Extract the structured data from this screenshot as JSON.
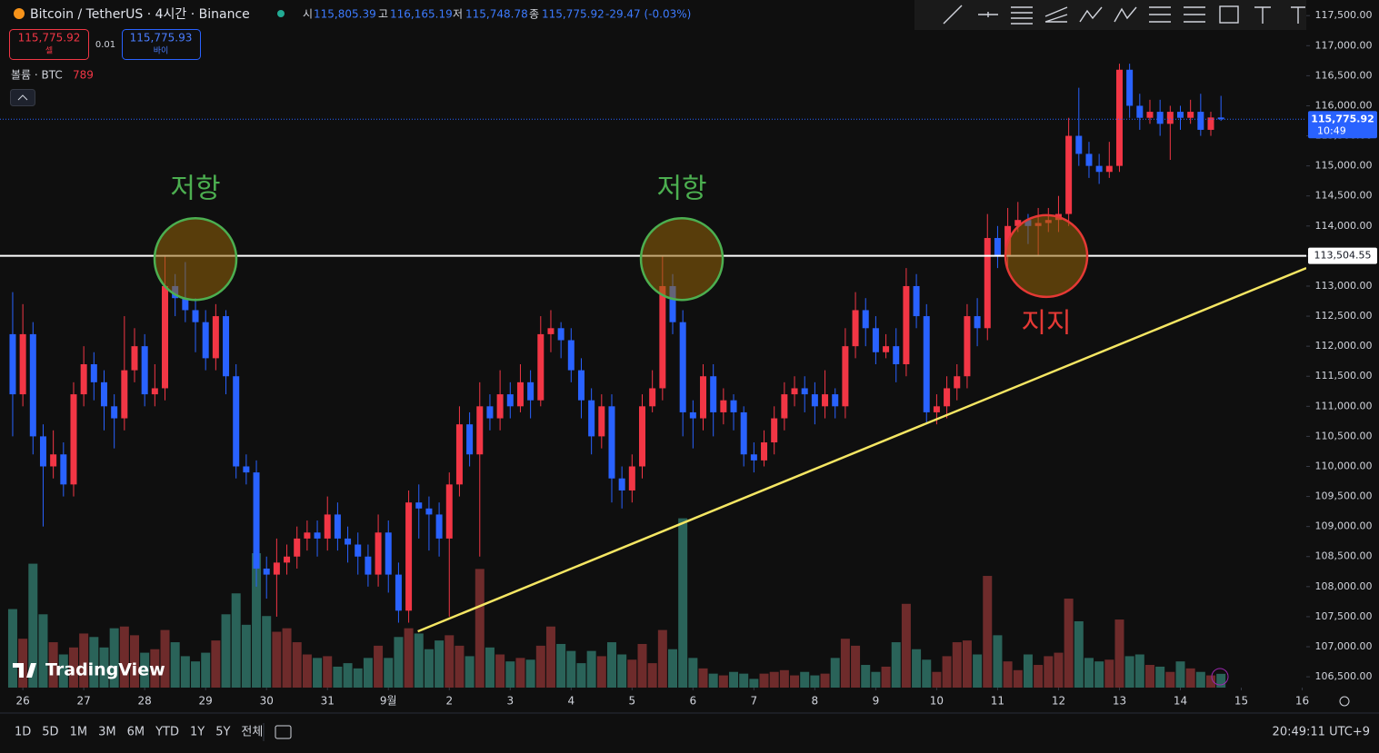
{
  "header": {
    "symbol": "Bitcoin / TetherUS · 4시간 · Binance",
    "o_label": "시",
    "o": "115,805.39",
    "h_label": "고",
    "h": "116,165.19",
    "l_label": "저",
    "l": "115,748.78",
    "c_label": "종",
    "c": "115,775.92",
    "change": "-29.47 (-0.03%)",
    "sell_price": "115,775.92",
    "sell": "셀",
    "spread": "0.01",
    "buy_price": "115,775.93",
    "buy": "바이",
    "volume_label": "볼륨 · BTC"
  },
  "chart_data": {
    "type": "candlestick",
    "open": [
      112200,
      111200,
      112200,
      110500,
      110000,
      110200,
      109700,
      111200,
      111700,
      111400,
      111000,
      110800,
      111600,
      112000,
      111200,
      111300,
      113000,
      112800,
      112600,
      112400,
      111800,
      112500,
      111500,
      110000,
      109900,
      108300,
      108200,
      108400,
      108500,
      108800,
      108900,
      108800,
      109200,
      108800,
      108700,
      108500,
      108200,
      108900,
      108200,
      107600,
      109400,
      109300,
      109200,
      108800,
      109700,
      110700,
      110200,
      111000,
      110800,
      111200,
      111000,
      111400,
      111100,
      112200,
      112300,
      112100,
      111600,
      111100,
      110500,
      111000,
      109800,
      109600,
      110000,
      111000,
      111300,
      113000,
      112400,
      110900,
      110800,
      111500,
      110900,
      111100,
      110900,
      110200,
      110100,
      110400,
      110800,
      111200,
      111300,
      111200,
      111000,
      111200,
      111000,
      112000,
      112600,
      112300,
      111900,
      112000,
      111700,
      113000,
      112500,
      110900,
      111000,
      111300,
      111500,
      112500,
      112300,
      113800,
      113500,
      114000,
      114100,
      114000,
      114050,
      114100,
      114200,
      115500,
      115200,
      115000,
      114900,
      115000,
      116600,
      116000,
      115800,
      115900,
      115700,
      115900,
      115800,
      115900,
      115600,
      115805.39
    ],
    "high": [
      112900,
      112700,
      112400,
      110700,
      110600,
      110400,
      111400,
      112000,
      111900,
      111600,
      111200,
      112500,
      112300,
      112200,
      111700,
      113500,
      113200,
      113400,
      112800,
      112600,
      112700,
      112600,
      111700,
      110200,
      110100,
      108500,
      108800,
      108700,
      109000,
      109100,
      109100,
      109500,
      109400,
      109000,
      108900,
      108700,
      109200,
      109100,
      108400,
      109600,
      109700,
      109500,
      109400,
      109900,
      111000,
      110900,
      111400,
      111200,
      111600,
      111400,
      111700,
      111600,
      112500,
      112600,
      112400,
      112300,
      111800,
      111300,
      111200,
      111200,
      110000,
      110200,
      111200,
      111600,
      113500,
      113200,
      112600,
      111100,
      111700,
      111700,
      111300,
      111200,
      111000,
      110400,
      110600,
      111000,
      111400,
      111500,
      111500,
      111400,
      111600,
      111300,
      112300,
      112900,
      112800,
      112500,
      112200,
      112300,
      113300,
      113200,
      112700,
      111200,
      111500,
      111700,
      112700,
      112800,
      114200,
      114000,
      114300,
      114400,
      114200,
      114300,
      114300,
      114500,
      115800,
      116300,
      115400,
      115200,
      115400,
      116700,
      116700,
      116200,
      116100,
      116100,
      116000,
      116000,
      116100,
      116200,
      115900,
      116165.19
    ],
    "low": [
      110500,
      111000,
      110200,
      109000,
      109800,
      109500,
      109500,
      111000,
      111100,
      110600,
      110300,
      110600,
      111400,
      111000,
      111000,
      111100,
      112500,
      112400,
      111900,
      111600,
      111600,
      111200,
      109800,
      109700,
      108000,
      107800,
      107500,
      108200,
      108300,
      108600,
      108500,
      108600,
      108600,
      108400,
      108200,
      108000,
      108000,
      107900,
      107400,
      107400,
      108800,
      108600,
      108500,
      107500,
      109500,
      110000,
      108500,
      110600,
      110600,
      110800,
      110900,
      110800,
      111000,
      111900,
      111800,
      111400,
      110800,
      110200,
      110300,
      109400,
      109300,
      109400,
      109800,
      110900,
      111100,
      112200,
      110500,
      110300,
      110600,
      110500,
      110700,
      110600,
      110000,
      109900,
      110000,
      110200,
      110600,
      111000,
      110900,
      110700,
      110800,
      110800,
      110800,
      111800,
      112000,
      111700,
      111800,
      111400,
      111500,
      112300,
      110700,
      110700,
      110800,
      111100,
      111300,
      112000,
      112100,
      113300,
      113300,
      113900,
      113700,
      113500,
      113900,
      113900,
      114000,
      115000,
      114800,
      114700,
      114800,
      114900,
      115800,
      115600,
      115700,
      115500,
      115100,
      115600,
      115700,
      115500,
      115500,
      115748.78
    ],
    "close": [
      111200,
      112200,
      110500,
      110000,
      110200,
      109700,
      111200,
      111700,
      111400,
      111000,
      110800,
      111600,
      112000,
      111200,
      111300,
      113000,
      112800,
      112600,
      112400,
      111800,
      112500,
      111500,
      110000,
      109900,
      108300,
      108200,
      108400,
      108500,
      108800,
      108900,
      108800,
      109200,
      108800,
      108700,
      108500,
      108200,
      108900,
      108200,
      107600,
      109400,
      109300,
      109200,
      108800,
      109700,
      110700,
      110200,
      111000,
      110800,
      111200,
      111000,
      111400,
      111100,
      112200,
      112300,
      112100,
      111600,
      111100,
      110500,
      111000,
      109800,
      109600,
      110000,
      111000,
      111300,
      113000,
      112400,
      110900,
      110800,
      111500,
      110900,
      111100,
      110900,
      110200,
      110100,
      110400,
      110800,
      111200,
      111300,
      111200,
      111000,
      111200,
      111000,
      112000,
      112600,
      112300,
      111900,
      112000,
      111700,
      113000,
      112500,
      110900,
      111000,
      111300,
      111500,
      112500,
      112300,
      113800,
      113500,
      114000,
      114100,
      114000,
      114050,
      114100,
      114200,
      115500,
      115200,
      115000,
      114900,
      115000,
      116600,
      116000,
      115800,
      115900,
      115700,
      115900,
      115800,
      115900,
      115600,
      115805.39,
      115775.92
    ],
    "volume": [
      4500,
      2800,
      7100,
      4200,
      2600,
      1900,
      2300,
      3100,
      2900,
      2300,
      3400,
      3500,
      3000,
      2000,
      2200,
      3300,
      2600,
      1800,
      1500,
      2000,
      2700,
      4200,
      5400,
      3600,
      7700,
      4100,
      3200,
      3400,
      2600,
      1900,
      1700,
      1800,
      1200,
      1400,
      1100,
      1700,
      2400,
      1700,
      2900,
      3400,
      3100,
      2200,
      2700,
      3000,
      2400,
      1800,
      6800,
      2300,
      1900,
      1500,
      1700,
      1600,
      2400,
      3500,
      2500,
      2100,
      1400,
      2100,
      1800,
      2600,
      1900,
      1600,
      2500,
      1400,
      3300,
      2200,
      9700,
      1700,
      1100,
      800,
      700,
      900,
      800,
      500,
      800,
      900,
      1000,
      700,
      900,
      700,
      800,
      1700,
      2800,
      2400,
      1300,
      900,
      1200,
      2600,
      4800,
      2200,
      1600,
      900,
      1800,
      2600,
      2700,
      1900,
      6400,
      3000,
      1500,
      1000,
      1900,
      1300,
      1800,
      2000,
      5100,
      3800,
      1700,
      1500,
      1600,
      3900,
      1800,
      1900,
      1300,
      1200,
      900,
      1500,
      1100,
      900,
      700,
      789
    ],
    "up_color": "#f23645",
    "down_color": "#2962ff",
    "volume_up_color": "#6e2b2b",
    "volume_down_color": "#2a6359",
    "xlim": [
      -1.25,
      127.4
    ],
    "ylim": [
      106320,
      117760
    ],
    "volume_ylim": [
      0,
      39400
    ],
    "yticks": [
      {
        "value": 106500,
        "label": "106,500.00"
      },
      {
        "value": 107000,
        "label": "107,000.00"
      },
      {
        "value": 107500,
        "label": "107,500.00"
      },
      {
        "value": 108000,
        "label": "108,000.00"
      },
      {
        "value": 108500,
        "label": "108,500.00"
      },
      {
        "value": 109000,
        "label": "109,000.00"
      },
      {
        "value": 109500,
        "label": "109,500.00"
      },
      {
        "value": 110000,
        "label": "110,000.00"
      },
      {
        "value": 110500,
        "label": "110,500.00"
      },
      {
        "value": 111000,
        "label": "111,000.00"
      },
      {
        "value": 111500,
        "label": "111,500.00"
      },
      {
        "value": 112000,
        "label": "112,000.00"
      },
      {
        "value": 112500,
        "label": "112,500.00"
      },
      {
        "value": 113000,
        "label": "113,000.00"
      },
      {
        "value": 113500,
        "label": "113,500.00"
      },
      {
        "value": 114000,
        "label": "114,000.00"
      },
      {
        "value": 114500,
        "label": "114,500.00"
      },
      {
        "value": 115000,
        "label": "115,000.00"
      },
      {
        "value": 115500,
        "label": "115,500.00"
      },
      {
        "value": 116000,
        "label": "116,000.00"
      },
      {
        "value": 116500,
        "label": "116,500.00"
      },
      {
        "value": 117000,
        "label": "117,000.00"
      },
      {
        "value": 117500,
        "label": "117,500.00"
      }
    ],
    "xticks": [
      {
        "value": 1,
        "label": "26"
      },
      {
        "value": 7,
        "label": "27"
      },
      {
        "value": 13,
        "label": "28"
      },
      {
        "value": 19,
        "label": "29"
      },
      {
        "value": 25,
        "label": "30"
      },
      {
        "value": 31,
        "label": "31"
      },
      {
        "value": 37,
        "label": "9월"
      },
      {
        "value": 43,
        "label": "2"
      },
      {
        "value": 49,
        "label": "3"
      },
      {
        "value": 55,
        "label": "4"
      },
      {
        "value": 61,
        "label": "5"
      },
      {
        "value": 67,
        "label": "6"
      },
      {
        "value": 73,
        "label": "7"
      },
      {
        "value": 79,
        "label": "8"
      },
      {
        "value": 85,
        "label": "9"
      },
      {
        "value": 91,
        "label": "10"
      },
      {
        "value": 97,
        "label": "11"
      },
      {
        "value": 103,
        "label": "12"
      },
      {
        "value": 109,
        "label": "13"
      },
      {
        "value": 115,
        "label": "14"
      },
      {
        "value": 121,
        "label": "15"
      },
      {
        "value": 127,
        "label": "16"
      }
    ],
    "hline": {
      "value": 113504.55,
      "label": "113,504.55",
      "color": "#ffffff"
    },
    "last_price": {
      "label": "115,775.92",
      "time": "10:49",
      "color": "#2962ff"
    },
    "trendline": {
      "x": [
        39.9,
        127.4
      ],
      "y": [
        107255,
        113300
      ],
      "color": "#f5e663"
    },
    "circles": [
      {
        "x": 18,
        "y": 113450,
        "label": "저항",
        "color": "#4caf50",
        "label_side": "above"
      },
      {
        "x": 65.9,
        "y": 113450,
        "label": "저항",
        "color": "#4caf50",
        "label_side": "above"
      },
      {
        "x": 101.8,
        "y": 113500,
        "label": "지지",
        "color": "#e53935",
        "label_side": "below"
      }
    ]
  },
  "footer": {
    "ranges": [
      "1D",
      "5D",
      "1M",
      "3M",
      "6M",
      "YTD",
      "1Y",
      "5Y",
      "전체"
    ],
    "clock": "20:49:11 UTC+9"
  },
  "logo": "TradingView"
}
